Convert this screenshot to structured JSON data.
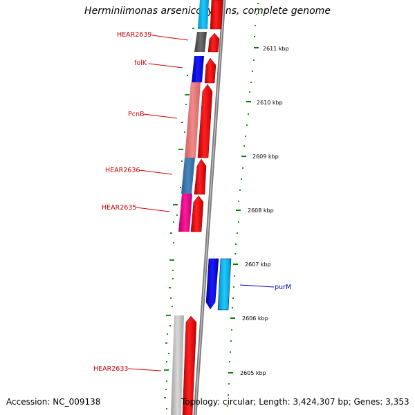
{
  "title": "Herminiimonas arsenicoxydans, complete genome",
  "footer": {
    "accession": "Accession: NC_009138",
    "topology": "Topology: circular; Length: 3,424,307 bp; Genes: 3,353"
  },
  "colors": {
    "forward_strand": "#ff0000",
    "backbone": "#808080",
    "tick": "#008000",
    "label_forward": "#cc0000",
    "label_reverse": "#0000cc"
  },
  "scale_ticks": [
    "2611 kbp",
    "2610 kbp",
    "2609 kbp",
    "2608 kbp",
    "2607 kbp",
    "2606 kbp",
    "2605 kbp"
  ],
  "gene_labels": {
    "hear2639": "HEAR2639",
    "folk": "folK",
    "pcnb": "PcnB",
    "hear2636": "HEAR2636",
    "hear2635": "HEAR2635",
    "purm": "purM",
    "hear2633": "HEAR2633"
  }
}
